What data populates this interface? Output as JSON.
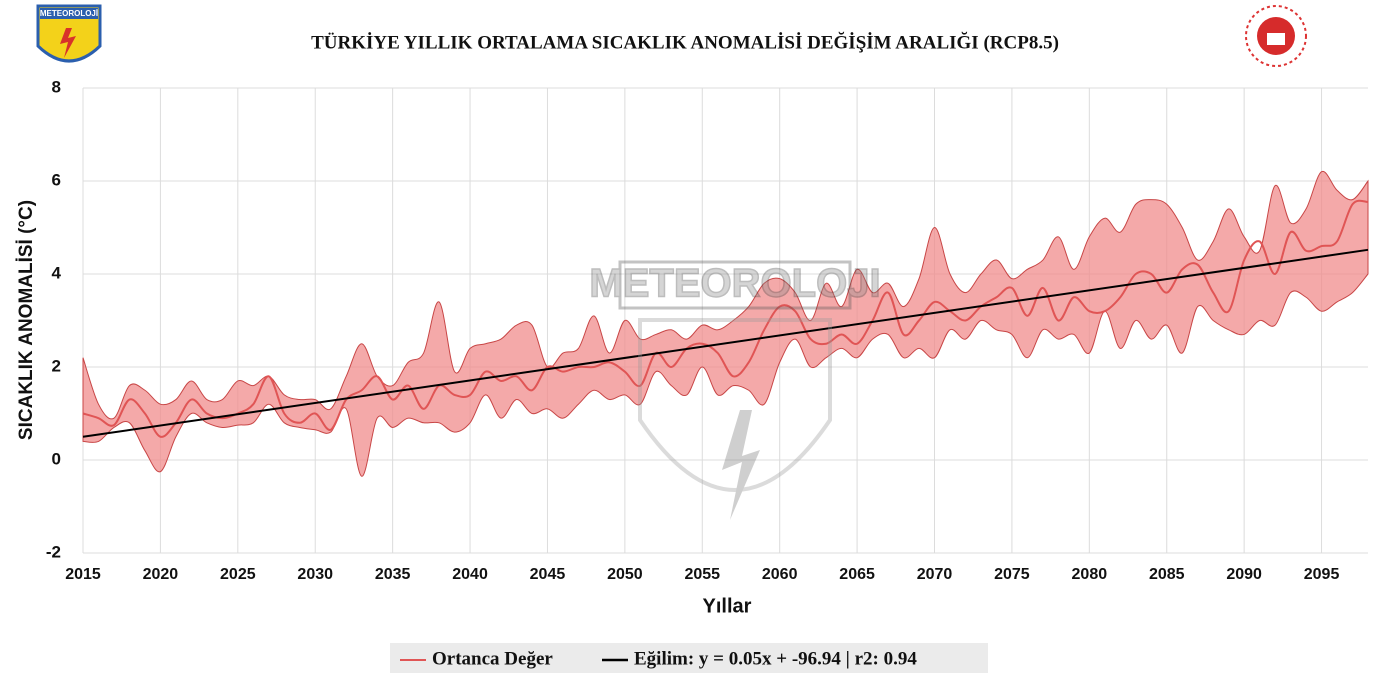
{
  "chart_data": {
    "type": "line",
    "title": "TÜRKİYE YILLIK ORTALAMA SICAKLIK ANOMALİSİ DEĞİŞİM ARALIĞI (RCP8.5)",
    "xlabel": "Yıllar",
    "ylabel": "SICAKLIK ANOMALİSİ (°C)",
    "watermark": "METEOROLOJI",
    "logo_text": "METEOROLOJİ",
    "x": [
      2015,
      2016,
      2017,
      2018,
      2019,
      2020,
      2021,
      2022,
      2023,
      2024,
      2025,
      2026,
      2027,
      2028,
      2029,
      2030,
      2031,
      2032,
      2033,
      2034,
      2035,
      2036,
      2037,
      2038,
      2039,
      2040,
      2041,
      2042,
      2043,
      2044,
      2045,
      2046,
      2047,
      2048,
      2049,
      2050,
      2051,
      2052,
      2053,
      2054,
      2055,
      2056,
      2057,
      2058,
      2059,
      2060,
      2061,
      2062,
      2063,
      2064,
      2065,
      2066,
      2067,
      2068,
      2069,
      2070,
      2071,
      2072,
      2073,
      2074,
      2075,
      2076,
      2077,
      2078,
      2079,
      2080,
      2081,
      2082,
      2083,
      2084,
      2085,
      2086,
      2087,
      2088,
      2089,
      2090,
      2091,
      2092,
      2093,
      2094,
      2095,
      2096,
      2097,
      2098
    ],
    "band": {
      "color": "#f08c8c",
      "edge": "#c84646",
      "low": [
        0.4,
        0.4,
        0.7,
        0.8,
        0.2,
        -0.25,
        0.5,
        1.0,
        0.8,
        0.7,
        0.75,
        0.8,
        1.2,
        0.8,
        0.7,
        0.65,
        0.6,
        1.1,
        -0.35,
        0.9,
        0.7,
        0.9,
        0.8,
        0.8,
        0.6,
        0.8,
        1.4,
        0.9,
        1.3,
        1.0,
        1.1,
        0.9,
        1.2,
        1.5,
        1.3,
        1.4,
        1.2,
        1.9,
        1.6,
        1.4,
        2.0,
        1.4,
        1.6,
        1.5,
        1.2,
        2.1,
        2.6,
        2.0,
        2.2,
        2.4,
        2.2,
        2.6,
        2.7,
        2.2,
        2.4,
        2.2,
        2.8,
        2.6,
        3.0,
        2.8,
        2.7,
        2.2,
        2.8,
        2.6,
        2.7,
        2.3,
        3.2,
        2.4,
        3.0,
        2.6,
        2.9,
        2.3,
        3.3,
        3.0,
        2.8,
        2.7,
        3.0,
        2.9,
        3.6,
        3.5,
        3.2,
        3.4,
        3.6,
        4.0
      ],
      "high": [
        2.2,
        1.2,
        0.9,
        1.6,
        1.5,
        1.2,
        1.3,
        1.7,
        1.3,
        1.3,
        1.7,
        1.6,
        1.8,
        1.4,
        1.3,
        1.3,
        1.1,
        1.8,
        2.5,
        1.8,
        1.6,
        2.1,
        2.3,
        3.4,
        1.9,
        2.4,
        2.5,
        2.6,
        2.9,
        2.9,
        2.0,
        2.3,
        2.4,
        3.1,
        2.3,
        3.0,
        2.6,
        2.7,
        2.8,
        2.6,
        2.9,
        2.8,
        3.0,
        3.3,
        3.8,
        3.9,
        3.6,
        3.0,
        3.8,
        3.3,
        4.1,
        3.6,
        3.8,
        3.3,
        3.9,
        5.0,
        4.0,
        3.6,
        4.0,
        4.3,
        3.9,
        4.1,
        4.3,
        4.8,
        4.1,
        4.8,
        5.2,
        4.9,
        5.5,
        5.6,
        5.5,
        5.0,
        4.3,
        4.7,
        5.4,
        4.8,
        4.5,
        5.9,
        5.1,
        5.4,
        6.2,
        5.8,
        5.6,
        6.0
      ]
    },
    "series": [
      {
        "name": "Ortanca Değer",
        "color": "#e05555",
        "values": [
          1.0,
          0.9,
          0.75,
          1.3,
          1.0,
          0.5,
          0.8,
          1.3,
          1.0,
          0.9,
          1.0,
          1.2,
          1.8,
          1.0,
          0.8,
          1.0,
          0.65,
          1.3,
          1.5,
          1.8,
          1.3,
          1.6,
          1.1,
          1.6,
          1.4,
          1.4,
          1.9,
          1.7,
          1.8,
          1.5,
          2.0,
          1.9,
          2.0,
          2.0,
          2.1,
          1.9,
          1.6,
          2.3,
          2.0,
          2.4,
          2.5,
          2.3,
          1.8,
          2.1,
          2.8,
          3.3,
          3.2,
          2.6,
          2.5,
          2.7,
          2.5,
          3.0,
          3.6,
          2.7,
          3.0,
          3.4,
          3.2,
          3.0,
          3.3,
          3.5,
          3.7,
          3.1,
          3.7,
          3.0,
          3.5,
          3.2,
          3.2,
          3.5,
          4.0,
          4.0,
          3.6,
          4.1,
          4.2,
          3.6,
          3.2,
          4.3,
          4.7,
          4.0,
          4.9,
          4.5,
          4.6,
          4.7,
          5.5,
          5.55
        ]
      },
      {
        "name": "Eğilim: y = 0.05x + -96.94 | r2: 0.94",
        "color": "#000000",
        "x": [
          2015,
          2098
        ],
        "values": [
          0.5,
          4.52
        ]
      }
    ],
    "xlim": [
      2015,
      2098
    ],
    "xticks": [
      2015,
      2020,
      2025,
      2030,
      2035,
      2040,
      2045,
      2050,
      2055,
      2060,
      2065,
      2070,
      2075,
      2080,
      2085,
      2090,
      2095
    ],
    "ylim": [
      -2,
      8
    ],
    "yticks": [
      -2,
      0,
      2,
      4,
      6,
      8
    ],
    "grid": true
  }
}
